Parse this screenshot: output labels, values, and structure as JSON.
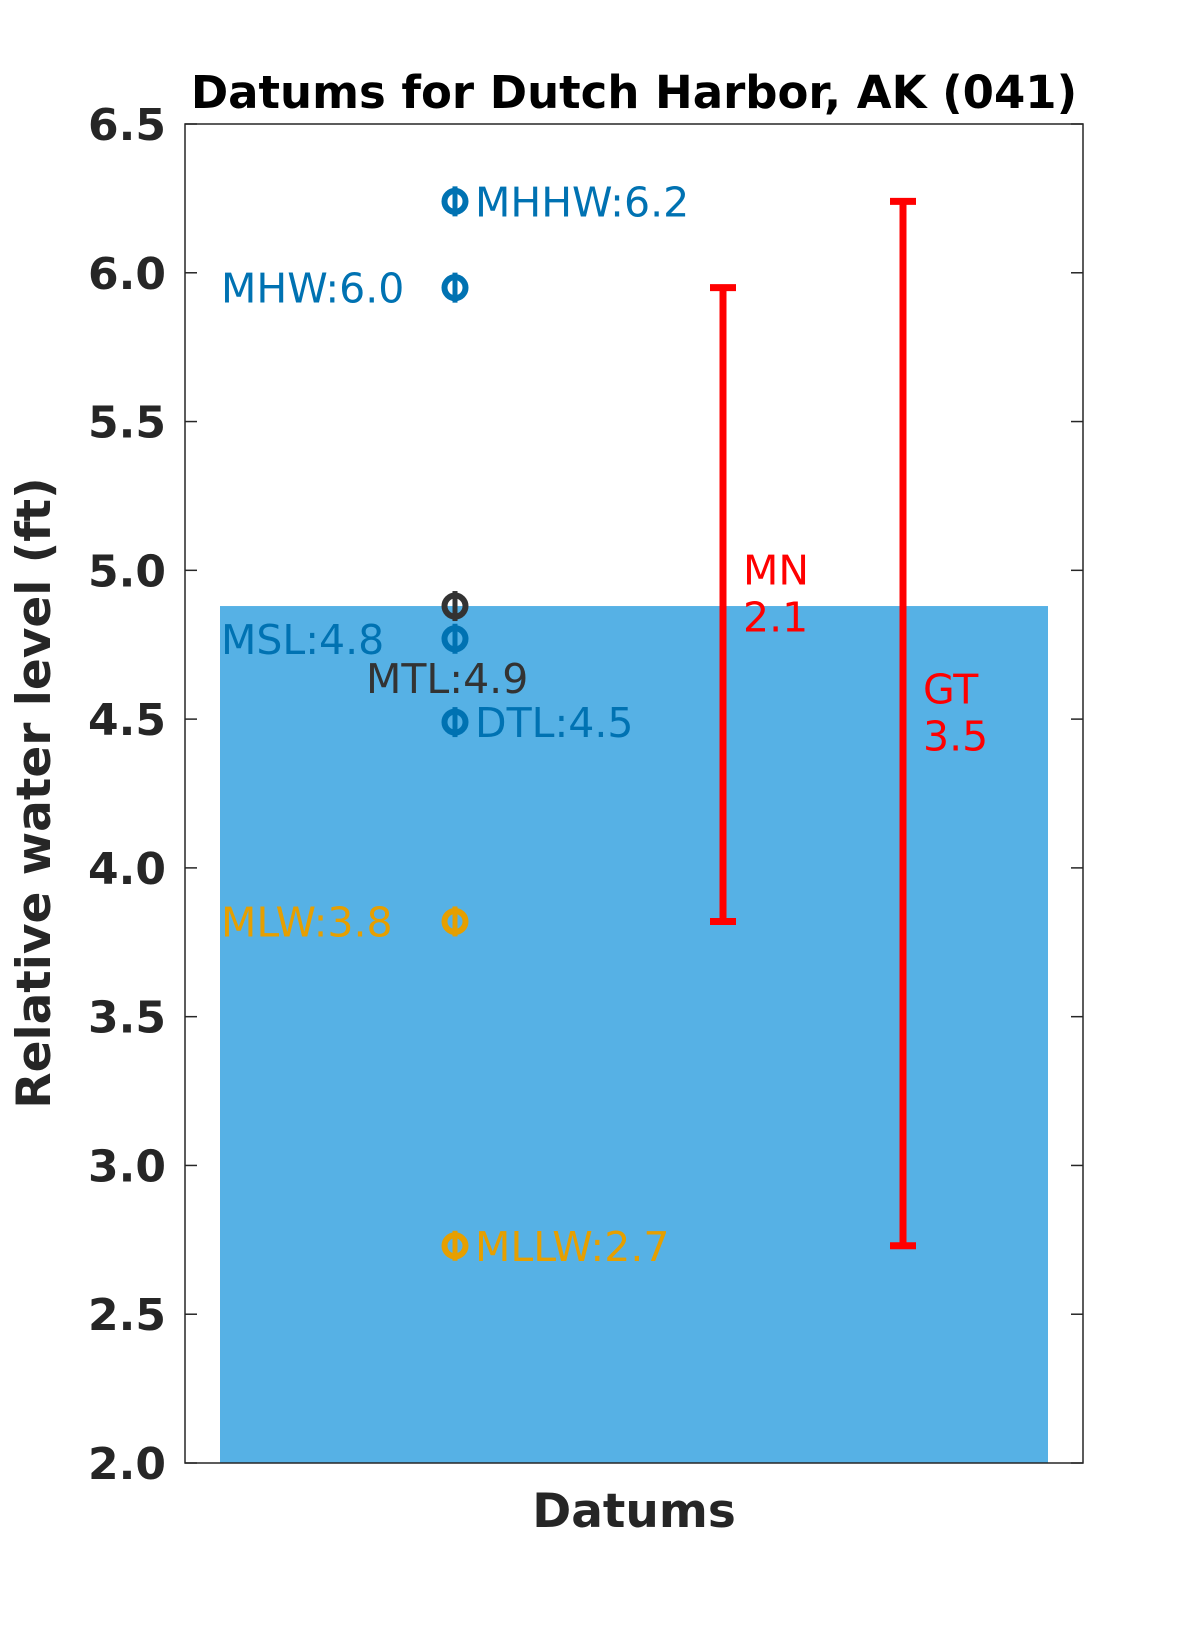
{
  "chart_data": {
    "type": "scatter",
    "title": "Datums for Dutch Harbor, AK (041)",
    "xlabel": "Datums",
    "ylabel": "Relative water level (ft)",
    "ylim": [
      2.0,
      6.5
    ],
    "yticks": [
      "2.0",
      "2.5",
      "3.0",
      "3.5",
      "4.0",
      "4.5",
      "5.0",
      "5.5",
      "6.0",
      "6.5"
    ],
    "grid": false,
    "background_fill": {
      "top_value": 4.88,
      "color": "#56B1E5"
    },
    "datums": [
      {
        "name": "MHHW",
        "value": 6.24,
        "label": "MHHW:6.2",
        "color": "#0072B2",
        "label_side": "right"
      },
      {
        "name": "MHW",
        "value": 5.95,
        "label": "MHW:6.0",
        "color": "#0072B2",
        "label_side": "left"
      },
      {
        "name": "MTL",
        "value": 4.88,
        "label": "MTL:4.9",
        "color": "#333333",
        "label_side": "below"
      },
      {
        "name": "MSL",
        "value": 4.77,
        "label": "MSL:4.8",
        "color": "#0072B2",
        "label_side": "left"
      },
      {
        "name": "DTL",
        "value": 4.49,
        "label": "DTL:4.5",
        "color": "#0072B2",
        "label_side": "right"
      },
      {
        "name": "MLW",
        "value": 3.82,
        "label": "MLW:3.8",
        "color": "#E69F00",
        "label_side": "left"
      },
      {
        "name": "MLLW",
        "value": 2.73,
        "label": "MLLW:2.7",
        "color": "#E69F00",
        "label_side": "right"
      }
    ],
    "ranges": [
      {
        "name": "MN",
        "low": 3.82,
        "high": 5.95,
        "label_name": "MN",
        "label_value": "2.1",
        "color": "#FF0000"
      },
      {
        "name": "GT",
        "low": 2.73,
        "high": 6.24,
        "label_name": "GT",
        "label_value": "3.5",
        "color": "#FF0000"
      }
    ]
  }
}
